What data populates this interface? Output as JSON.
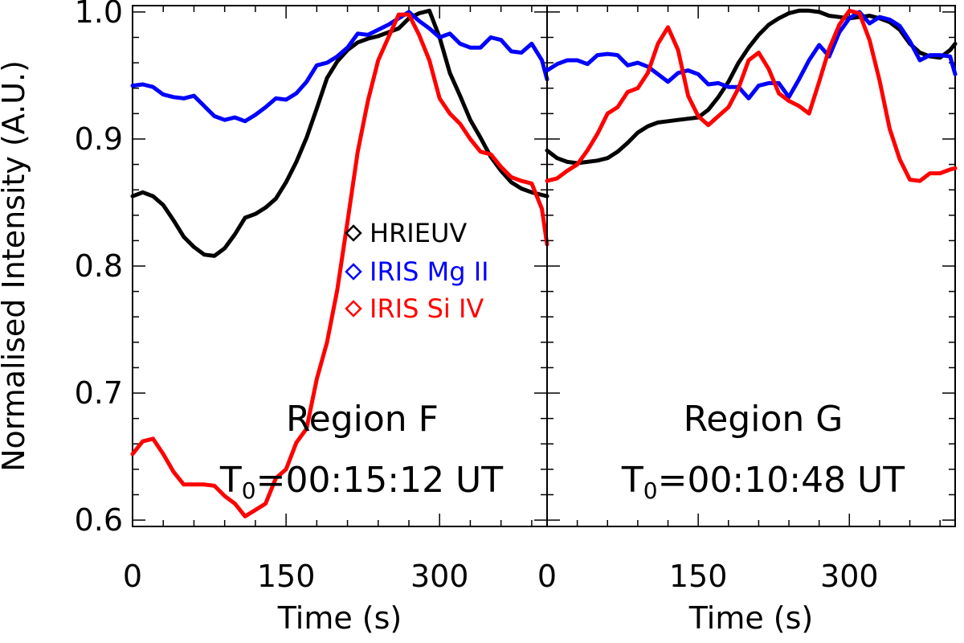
{
  "chart_data": [
    {
      "type": "line",
      "panel": "left",
      "ylabel": "Normalised Intensity (A.U.)",
      "xlabel": "Time (s)",
      "xlim": [
        0,
        405
      ],
      "ylim": [
        0.595,
        1.005
      ],
      "x_ticks": [
        0,
        150,
        300
      ],
      "y_ticks": [
        0.6,
        0.7,
        0.8,
        0.9,
        1.0
      ],
      "y_tick_labels": [
        "0.6",
        "0.7",
        "0.8",
        "0.9",
        "1.0"
      ],
      "legend": {
        "placement": "center",
        "entries": [
          "HRIEUV",
          "IRIS Mg II",
          "IRIS Si IV"
        ]
      },
      "annotations": {
        "region": "Region F",
        "t0_prefix": "T",
        "t0_sub": "0",
        "t0_value": "=00:15:12 UT"
      },
      "series": [
        {
          "name": "HRIEUV",
          "color": "#000000",
          "x": [
            0,
            10,
            20,
            30,
            40,
            50,
            60,
            70,
            80,
            90,
            100,
            110,
            120,
            130,
            140,
            150,
            160,
            170,
            180,
            190,
            200,
            210,
            220,
            230,
            240,
            250,
            260,
            270,
            280,
            290,
            300,
            310,
            320,
            330,
            340,
            350,
            360,
            370,
            380,
            390,
            400,
            405
          ],
          "y": [
            0.855,
            0.858,
            0.855,
            0.848,
            0.836,
            0.823,
            0.815,
            0.809,
            0.808,
            0.814,
            0.825,
            0.838,
            0.841,
            0.846,
            0.853,
            0.866,
            0.882,
            0.901,
            0.924,
            0.948,
            0.961,
            0.97,
            0.976,
            0.979,
            0.981,
            0.984,
            0.987,
            0.995,
            0.999,
            1.001,
            0.98,
            0.952,
            0.934,
            0.915,
            0.901,
            0.886,
            0.875,
            0.866,
            0.861,
            0.858,
            0.856,
            0.855
          ]
        },
        {
          "name": "IRIS Mg II",
          "color": "#0000ff",
          "x": [
            0,
            10,
            20,
            30,
            40,
            50,
            60,
            70,
            80,
            90,
            100,
            110,
            120,
            130,
            140,
            150,
            160,
            170,
            180,
            190,
            200,
            210,
            220,
            230,
            240,
            250,
            260,
            270,
            280,
            290,
            300,
            310,
            320,
            330,
            340,
            350,
            360,
            370,
            380,
            390,
            400,
            405
          ],
          "y": [
            0.942,
            0.943,
            0.941,
            0.935,
            0.933,
            0.932,
            0.934,
            0.926,
            0.918,
            0.915,
            0.917,
            0.914,
            0.919,
            0.925,
            0.932,
            0.931,
            0.936,
            0.945,
            0.958,
            0.96,
            0.965,
            0.972,
            0.983,
            0.982,
            0.986,
            0.99,
            0.995,
            1.0,
            0.993,
            0.987,
            0.98,
            0.983,
            0.975,
            0.972,
            0.972,
            0.98,
            0.978,
            0.969,
            0.968,
            0.975,
            0.962,
            0.947
          ]
        },
        {
          "name": "IRIS Si IV",
          "color": "#ff0000",
          "x": [
            0,
            10,
            20,
            30,
            40,
            50,
            60,
            70,
            80,
            90,
            100,
            110,
            120,
            130,
            140,
            150,
            160,
            170,
            180,
            190,
            200,
            210,
            220,
            230,
            240,
            250,
            260,
            270,
            280,
            290,
            300,
            310,
            320,
            330,
            340,
            350,
            360,
            370,
            380,
            390,
            400,
            405
          ],
          "y": [
            0.652,
            0.662,
            0.664,
            0.652,
            0.638,
            0.628,
            0.628,
            0.628,
            0.627,
            0.619,
            0.613,
            0.603,
            0.608,
            0.613,
            0.633,
            0.64,
            0.661,
            0.672,
            0.711,
            0.74,
            0.781,
            0.835,
            0.89,
            0.93,
            0.962,
            0.98,
            0.998,
            0.998,
            0.982,
            0.962,
            0.932,
            0.92,
            0.912,
            0.9,
            0.89,
            0.888,
            0.878,
            0.87,
            0.867,
            0.865,
            0.845,
            0.817
          ]
        }
      ]
    },
    {
      "type": "line",
      "panel": "right",
      "xlabel": "Time (s)",
      "xlim": [
        0,
        405
      ],
      "ylim": [
        0.595,
        1.005
      ],
      "x_ticks": [
        0,
        150,
        300
      ],
      "legend": {
        "placement": "none",
        "entries": []
      },
      "annotations": {
        "region": "Region G",
        "t0_prefix": "T",
        "t0_sub": "0",
        "t0_value": "=00:10:48 UT"
      },
      "series": [
        {
          "name": "HRIEUV",
          "color": "#000000",
          "x": [
            0,
            10,
            20,
            30,
            40,
            50,
            60,
            70,
            80,
            90,
            100,
            110,
            120,
            130,
            140,
            150,
            160,
            170,
            180,
            190,
            200,
            210,
            220,
            230,
            240,
            250,
            260,
            270,
            280,
            290,
            300,
            310,
            320,
            330,
            340,
            350,
            360,
            370,
            380,
            390,
            400,
            405
          ],
          "y": [
            0.891,
            0.885,
            0.882,
            0.881,
            0.882,
            0.883,
            0.885,
            0.89,
            0.897,
            0.905,
            0.91,
            0.913,
            0.914,
            0.915,
            0.916,
            0.917,
            0.923,
            0.933,
            0.945,
            0.96,
            0.972,
            0.982,
            0.99,
            0.995,
            0.999,
            1.001,
            1.001,
            1.0,
            0.997,
            0.996,
            0.995,
            0.996,
            0.997,
            0.995,
            0.992,
            0.986,
            0.975,
            0.968,
            0.965,
            0.964,
            0.97,
            0.975
          ]
        },
        {
          "name": "IRIS Mg II",
          "color": "#0000ff",
          "x": [
            0,
            10,
            20,
            30,
            40,
            50,
            60,
            70,
            80,
            90,
            100,
            110,
            120,
            130,
            140,
            150,
            160,
            170,
            180,
            190,
            200,
            210,
            220,
            230,
            240,
            250,
            260,
            270,
            280,
            290,
            300,
            310,
            320,
            330,
            340,
            350,
            360,
            370,
            380,
            390,
            400,
            405
          ],
          "y": [
            0.954,
            0.959,
            0.962,
            0.962,
            0.959,
            0.966,
            0.967,
            0.966,
            0.958,
            0.96,
            0.957,
            0.951,
            0.945,
            0.952,
            0.954,
            0.951,
            0.943,
            0.944,
            0.941,
            0.941,
            0.932,
            0.942,
            0.944,
            0.944,
            0.933,
            0.947,
            0.962,
            0.974,
            0.965,
            0.984,
            0.995,
            1.0,
            0.991,
            0.996,
            0.994,
            0.989,
            0.977,
            0.962,
            0.966,
            0.966,
            0.965,
            0.951
          ]
        },
        {
          "name": "IRIS Si IV",
          "color": "#ff0000",
          "x": [
            0,
            10,
            20,
            30,
            40,
            50,
            60,
            70,
            80,
            90,
            100,
            110,
            120,
            130,
            140,
            150,
            160,
            170,
            180,
            190,
            200,
            210,
            220,
            230,
            240,
            250,
            260,
            270,
            280,
            290,
            300,
            310,
            320,
            330,
            340,
            350,
            360,
            370,
            380,
            390,
            400,
            405
          ],
          "y": [
            0.867,
            0.869,
            0.875,
            0.88,
            0.891,
            0.904,
            0.92,
            0.925,
            0.937,
            0.94,
            0.952,
            0.975,
            0.988,
            0.97,
            0.934,
            0.918,
            0.911,
            0.918,
            0.925,
            0.94,
            0.962,
            0.968,
            0.955,
            0.936,
            0.93,
            0.926,
            0.92,
            0.945,
            0.971,
            0.99,
            1.001,
            0.999,
            0.978,
            0.946,
            0.908,
            0.884,
            0.868,
            0.867,
            0.873,
            0.873,
            0.876,
            0.877
          ]
        }
      ]
    }
  ]
}
